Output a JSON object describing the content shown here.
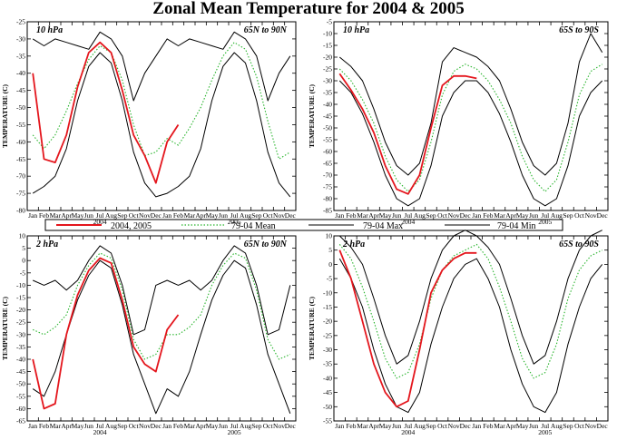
{
  "figure": {
    "title": "Zonal Mean Temperature for 2004 & 2005"
  },
  "legend": [
    {
      "label": "2004, 2005",
      "color": "#e4161d",
      "style": "solid"
    },
    {
      "label": "79-04 Mean",
      "color": "#28b42c",
      "style": "dotted"
    },
    {
      "label": "79-04 Max",
      "color": "#000000",
      "style": "solid"
    },
    {
      "label": "79-04 Min",
      "color": "#000000",
      "style": "solid"
    }
  ],
  "colors": {
    "current": "#e4161d",
    "mean": "#28b42c",
    "extremes": "#000000"
  },
  "chart_data": [
    {
      "type": "line",
      "level": "10 hPa",
      "region": "65N to 90N",
      "ylabel": "TEMPERATURE (C)",
      "ylim": [
        -80,
        -25
      ],
      "yticks": [
        -80,
        -75,
        -70,
        -65,
        -60,
        -55,
        -50,
        -45,
        -40,
        -35,
        -30,
        -25
      ],
      "x": [
        "Jan",
        "Feb",
        "Mar",
        "Apr",
        "May",
        "Jun",
        "Jul",
        "Aug",
        "Sep",
        "Oct",
        "Nov",
        "Dec",
        "Jan",
        "Feb",
        "Mar",
        "Apr",
        "May",
        "Jun",
        "Jul",
        "Aug",
        "Sep",
        "Oct",
        "Nov",
        "Dec"
      ],
      "year_labels": [
        "2004",
        "2005"
      ],
      "series": [
        {
          "name": "79-04 Max",
          "values": [
            -30,
            -32,
            -30,
            -31,
            -32,
            -33,
            -28,
            -30,
            -35,
            -48,
            -40,
            -35,
            -30,
            -32,
            -30,
            -31,
            -32,
            -33,
            -28,
            -30,
            -35,
            -48,
            -40,
            -35
          ]
        },
        {
          "name": "79-04 Mean",
          "values": [
            -58,
            -62,
            -58,
            -51,
            -43,
            -36,
            -32,
            -34,
            -42,
            -55,
            -64,
            -63,
            -59,
            -61,
            -56,
            -50,
            -42,
            -35,
            -31,
            -33,
            -41,
            -54,
            -65,
            -63
          ]
        },
        {
          "name": "79-04 Min",
          "values": [
            -75,
            -73,
            -70,
            -62,
            -48,
            -38,
            -34,
            -37,
            -48,
            -63,
            -72,
            -76,
            -75,
            -73,
            -70,
            -62,
            -48,
            -38,
            -34,
            -37,
            -48,
            -63,
            -72,
            -76
          ]
        },
        {
          "name": "2004, 2005",
          "values": [
            -40,
            -65,
            -66,
            -58,
            -44,
            -34,
            -31,
            -34,
            -45,
            -58,
            -64,
            -72,
            -60,
            -55,
            null,
            null,
            null,
            null,
            null,
            null,
            null,
            null,
            null,
            null
          ]
        }
      ]
    },
    {
      "type": "line",
      "level": "10 hPa",
      "region": "65S to 90S",
      "ylabel": "TEMPERATURE (C)",
      "ylim": [
        -85,
        -5
      ],
      "yticks": [
        -85,
        -80,
        -75,
        -70,
        -65,
        -60,
        -55,
        -50,
        -45,
        -40,
        -35,
        -30,
        -25,
        -20,
        -15,
        -10,
        -5
      ],
      "x": [
        "Jan",
        "Feb",
        "Mar",
        "Apr",
        "May",
        "Jun",
        "Jul",
        "Aug",
        "Sep",
        "Oct",
        "Nov",
        "Dec",
        "Jan",
        "Feb",
        "Mar",
        "Apr",
        "May",
        "Jun",
        "Jul",
        "Aug",
        "Sep",
        "Oct",
        "Nov",
        "Dec"
      ],
      "year_labels": [
        "2004",
        "2005"
      ],
      "series": [
        {
          "name": "79-04 Max",
          "values": [
            -20,
            -24,
            -30,
            -42,
            -56,
            -66,
            -70,
            -65,
            -48,
            -22,
            -16,
            -18,
            -20,
            -24,
            -30,
            -42,
            -56,
            -66,
            -70,
            -65,
            -48,
            -22,
            -10,
            -18
          ]
        },
        {
          "name": "79-04 Mean",
          "values": [
            -25,
            -30,
            -38,
            -48,
            -62,
            -72,
            -77,
            -72,
            -56,
            -36,
            -26,
            -23,
            -25,
            -30,
            -38,
            -48,
            -62,
            -72,
            -77,
            -72,
            -56,
            -36,
            -26,
            -23
          ]
        },
        {
          "name": "79-04 Min",
          "values": [
            -30,
            -35,
            -44,
            -56,
            -70,
            -80,
            -83,
            -80,
            -66,
            -45,
            -35,
            -30,
            -30,
            -35,
            -44,
            -56,
            -70,
            -80,
            -83,
            -80,
            -66,
            -45,
            -35,
            -30
          ]
        },
        {
          "name": "2004, 2005",
          "values": [
            -27,
            -34,
            -42,
            -52,
            -66,
            -76,
            -78,
            -70,
            -50,
            -32,
            -28,
            -28,
            -29,
            null,
            null,
            null,
            null,
            null,
            null,
            null,
            null,
            null,
            null,
            null
          ]
        }
      ]
    },
    {
      "type": "line",
      "level": "2 hPa",
      "region": "65N to 90N",
      "ylabel": "TEMPERATURE (C)",
      "ylim": [
        -65,
        10
      ],
      "yticks": [
        -65,
        -60,
        -55,
        -50,
        -45,
        -40,
        -35,
        -30,
        -25,
        -20,
        -15,
        -10,
        -5,
        0,
        5,
        10
      ],
      "x": [
        "Jan",
        "Feb",
        "Mar",
        "Apr",
        "May",
        "Jun",
        "Jul",
        "Aug",
        "Sep",
        "Oct",
        "Nov",
        "Dec",
        "Jan",
        "Feb",
        "Mar",
        "Apr",
        "May",
        "Jun",
        "Jul",
        "Aug",
        "Sep",
        "Oct",
        "Nov",
        "Dec"
      ],
      "year_labels": [
        "2004",
        "2005"
      ],
      "series": [
        {
          "name": "79-04 Max",
          "values": [
            -8,
            -10,
            -8,
            -12,
            -8,
            0,
            6,
            3,
            -10,
            -30,
            -28,
            -10,
            -8,
            -10,
            -8,
            -12,
            -8,
            0,
            6,
            3,
            -10,
            -30,
            -28,
            -10
          ]
        },
        {
          "name": "79-04 Mean",
          "values": [
            -28,
            -30,
            -27,
            -22,
            -10,
            -2,
            3,
            1,
            -12,
            -32,
            -40,
            -38,
            -30,
            -30,
            -27,
            -22,
            -10,
            -2,
            3,
            1,
            -12,
            -32,
            -40,
            -38
          ]
        },
        {
          "name": "79-04 Min",
          "values": [
            -52,
            -55,
            -45,
            -30,
            -16,
            -6,
            0,
            -3,
            -18,
            -38,
            -50,
            -62,
            -52,
            -55,
            -45,
            -30,
            -16,
            -6,
            0,
            -3,
            -18,
            -38,
            -50,
            -62
          ]
        },
        {
          "name": "2004, 2005",
          "values": [
            -40,
            -60,
            -58,
            -30,
            -14,
            -4,
            1,
            -1,
            -16,
            -35,
            -42,
            -45,
            -28,
            -22,
            null,
            null,
            null,
            null,
            null,
            null,
            null,
            null,
            null,
            null
          ]
        }
      ]
    },
    {
      "type": "line",
      "level": "2 hPa",
      "region": "65S to 90S",
      "ylabel": "TEMPERATURE (C)",
      "ylim": [
        -55,
        10
      ],
      "yticks": [
        -55,
        -50,
        -45,
        -40,
        -35,
        -30,
        -25,
        -20,
        -15,
        -10,
        -5,
        0,
        5,
        10
      ],
      "x": [
        "Jan",
        "Feb",
        "Mar",
        "Apr",
        "May",
        "Jun",
        "Jul",
        "Aug",
        "Sep",
        "Oct",
        "Nov",
        "Dec",
        "Jan",
        "Feb",
        "Mar",
        "Apr",
        "May",
        "Jun",
        "Jul",
        "Aug",
        "Sep",
        "Oct",
        "Nov",
        "Dec"
      ],
      "year_labels": [
        "2004",
        "2005"
      ],
      "series": [
        {
          "name": "79-04 Max",
          "values": [
            10,
            6,
            0,
            -12,
            -25,
            -35,
            -32,
            -20,
            -5,
            5,
            10,
            12,
            10,
            6,
            0,
            -12,
            -25,
            -35,
            -32,
            -20,
            -5,
            5,
            10,
            12
          ]
        },
        {
          "name": "79-04 Mean",
          "values": [
            7,
            2,
            -8,
            -20,
            -33,
            -40,
            -38,
            -28,
            -12,
            -2,
            3,
            5,
            7,
            2,
            -8,
            -20,
            -33,
            -40,
            -38,
            -28,
            -12,
            -2,
            3,
            5
          ]
        },
        {
          "name": "79-04 Min",
          "values": [
            2,
            -5,
            -15,
            -30,
            -42,
            -50,
            -52,
            -45,
            -28,
            -15,
            -5,
            0,
            2,
            -5,
            -15,
            -30,
            -42,
            -50,
            -52,
            -45,
            -28,
            -15,
            -5,
            0
          ]
        },
        {
          "name": "2004, 2005",
          "values": [
            5,
            -5,
            -20,
            -35,
            -45,
            -50,
            -48,
            -30,
            -10,
            -2,
            2,
            4,
            4,
            null,
            null,
            null,
            null,
            null,
            null,
            null,
            null,
            null,
            null,
            null
          ]
        }
      ]
    }
  ]
}
